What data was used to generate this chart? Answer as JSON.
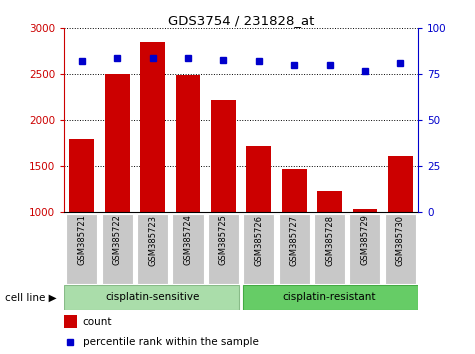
{
  "title": "GDS3754 / 231828_at",
  "categories": [
    "GSM385721",
    "GSM385722",
    "GSM385723",
    "GSM385724",
    "GSM385725",
    "GSM385726",
    "GSM385727",
    "GSM385728",
    "GSM385729",
    "GSM385730"
  ],
  "counts": [
    1800,
    2500,
    2850,
    2490,
    2220,
    1720,
    1470,
    1230,
    1040,
    1610
  ],
  "percentile_ranks": [
    82,
    84,
    84,
    84,
    83,
    82,
    80,
    80,
    77,
    81
  ],
  "bar_color": "#cc0000",
  "dot_color": "#0000cc",
  "ylim_left": [
    1000,
    3000
  ],
  "ylim_right": [
    0,
    100
  ],
  "yticks_left": [
    1000,
    1500,
    2000,
    2500,
    3000
  ],
  "yticks_right": [
    0,
    25,
    50,
    75,
    100
  ],
  "group1_label": "cisplatin-sensitive",
  "group2_label": "cisplatin-resistant",
  "group1_count": 5,
  "group2_count": 5,
  "legend_count_label": "count",
  "legend_pct_label": "percentile rank within the sample",
  "cell_line_label": "cell line",
  "group1_color": "#aaddaa",
  "group2_color": "#66cc66",
  "left_axis_color": "#cc0000",
  "right_axis_color": "#0000cc",
  "bar_bottom": 1000,
  "xlabel_bg_color": "#c8c8c8",
  "fig_bg_color": "#ffffff"
}
